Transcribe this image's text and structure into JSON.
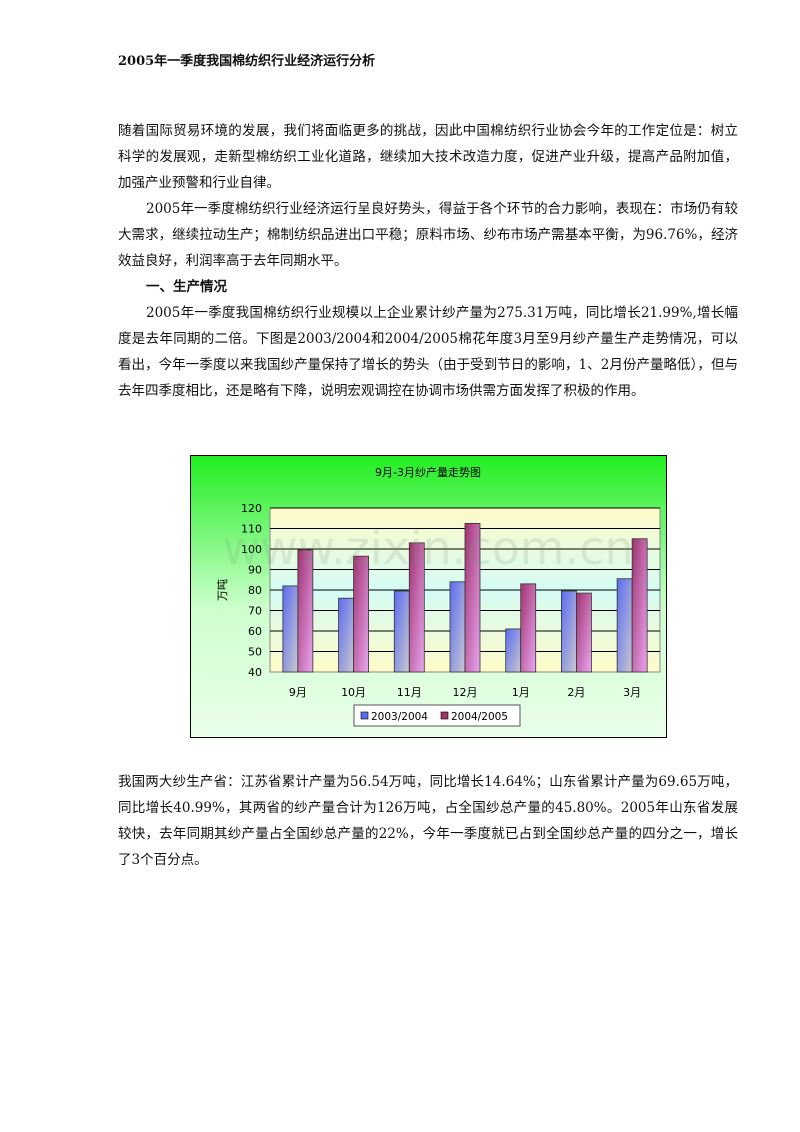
{
  "title": "2005年一季度我国棉纺织行业经济运行分析",
  "paragraphs": {
    "p1": "随着国际贸易环境的发展，我们将面临更多的挑战，因此中国棉纺织行业协会今年的工作定位是：树立科学的发展观，走新型棉纺织工业化道路，继续加大技术改造力度，促进产业升级，提高产品附加值，加强产业预警和行业自律。",
    "p2": "2005年一季度棉纺织行业经济运行呈良好势头，得益于各个环节的合力影响，表现在：市场仍有较大需求，继续拉动生产；棉制纺织品进出口平稳；原料市场、纱布市场产需基本平衡，为96.76%，经济效益良好，利润率高于去年同期水平。",
    "h1": "一、生产情况",
    "p3": "2005年一季度我国棉纺织行业规模以上企业累计纱产量为275.31万吨，同比增长21.99%,增长幅度是去年同期的二倍。下图是2003/2004和2004/2005棉花年度3月至9月纱产量生产走势情况，可以看出，今年一季度以来我国纱产量保持了增长的势头（由于受到节日的影响，1、2月份产量略低），但与去年四季度相比，还是略有下降，说明宏观调控在协调市场供需方面发挥了积极的作用。",
    "p4": "我国两大纱生产省：江苏省累计产量为56.54万吨，同比增长14.64%；山东省累计产量为69.65万吨，同比增长40.99%，其两省的纱产量合计为126万吨，占全国纱总产量的45.80%。2005年山东省发展较快，去年同期其纱产量占全国纱总产量的22%，今年一季度就已占到全国纱总产量的四分之一，增长了3个百分点。"
  },
  "watermark": "www.zixin.com.cn",
  "chart_data": {
    "type": "bar",
    "title": "9月-3月纱产量走势图",
    "ylabel": "万吨",
    "xlabel": "",
    "categories": [
      "9月",
      "10月",
      "11月",
      "12月",
      "1月",
      "2月",
      "3月"
    ],
    "ylim": [
      40,
      120
    ],
    "yticks": [
      40,
      50,
      60,
      70,
      80,
      90,
      100,
      110,
      120
    ],
    "grid": true,
    "legend": "bottom",
    "series": [
      {
        "name": "2003/2004",
        "color": "#5c6cf0",
        "values": [
          82,
          76,
          79.5,
          84,
          61,
          79.5,
          85.5
        ]
      },
      {
        "name": "2004/2005",
        "color": "#a0336e",
        "values": [
          99.5,
          96.5,
          103,
          112.5,
          83,
          78.5,
          105
        ]
      }
    ]
  }
}
